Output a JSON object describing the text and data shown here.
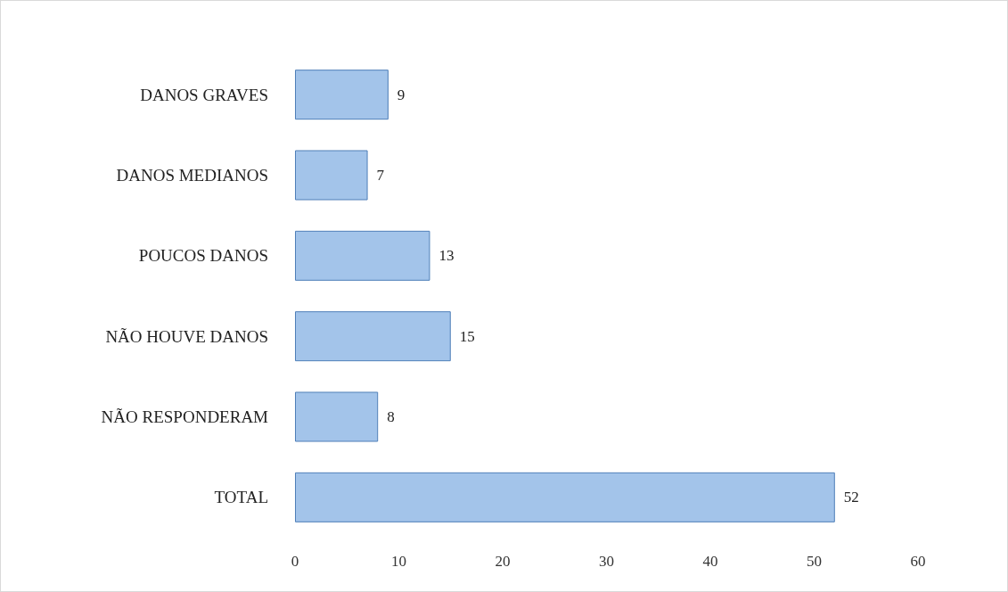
{
  "chart_data": {
    "type": "bar",
    "orientation": "horizontal",
    "categories": [
      "DANOS GRAVES",
      "DANOS MEDIANOS",
      "POUCOS DANOS",
      "NÃO HOUVE DANOS",
      "NÃO RESPONDERAM",
      "TOTAL"
    ],
    "values": [
      9,
      7,
      13,
      15,
      8,
      52
    ],
    "color": "#a3c4ea",
    "xlim": [
      0,
      60
    ],
    "xticks": [
      0,
      10,
      20,
      30,
      40,
      50,
      60
    ],
    "grid": false,
    "data_labels": true
  }
}
